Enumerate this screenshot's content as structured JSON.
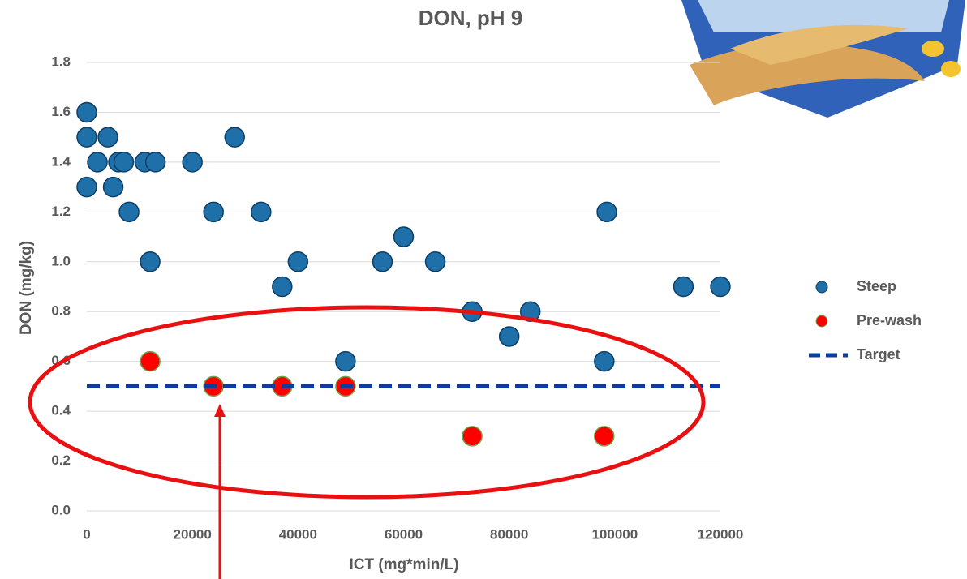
{
  "chart_data": {
    "type": "scatter",
    "title": "DON, pH 9",
    "x_label": "ICT (mg*min/L)",
    "y_label": "DON (mg/kg)",
    "xlim": [
      0,
      120000
    ],
    "xticks": [
      0,
      20000,
      40000,
      60000,
      80000,
      100000,
      120000
    ],
    "ylim": [
      0,
      1.8
    ],
    "yticks": [
      {
        "value": 0,
        "label": "0.0"
      },
      0.2,
      0.4,
      0.6,
      0.8,
      {
        "value": 1,
        "label": "1.0"
      },
      1.2,
      1.4,
      1.6,
      1.8
    ],
    "grid": true,
    "legend": "right",
    "series": [
      {
        "name": "Steep",
        "color": "#1f6fa8",
        "marker": "circle",
        "x": [
          0,
          0,
          0,
          2000,
          4000,
          5000,
          6000,
          7000,
          8000,
          11000,
          12000,
          13000,
          20000,
          24000,
          28000,
          33000,
          37000,
          40000,
          49000,
          56000,
          60000,
          66000,
          73000,
          80000,
          84000,
          98000,
          98500,
          113000,
          120000
        ],
        "values": [
          1.6,
          1.5,
          1.3,
          1.4,
          1.5,
          1.3,
          1.4,
          1.4,
          1.2,
          1.4,
          1.0,
          1.4,
          1.4,
          1.2,
          1.5,
          1.2,
          0.9,
          1.0,
          0.6,
          1.0,
          1.1,
          1.0,
          0.8,
          0.7,
          0.8,
          0.6,
          1.2,
          0.9,
          0.9
        ]
      },
      {
        "name": "Pre-wash",
        "color": "#ff0000",
        "marker": "circle",
        "x": [
          12000,
          24000,
          37000,
          49000,
          73000,
          98000
        ],
        "values": [
          0.6,
          0.5,
          0.5,
          0.5,
          0.3,
          0.3
        ]
      },
      {
        "name": "Target",
        "color": "#0a3d9e",
        "marker": "dashed-line",
        "x": [
          0,
          120000
        ],
        "values": [
          0.5,
          0.5
        ]
      }
    ]
  }
}
